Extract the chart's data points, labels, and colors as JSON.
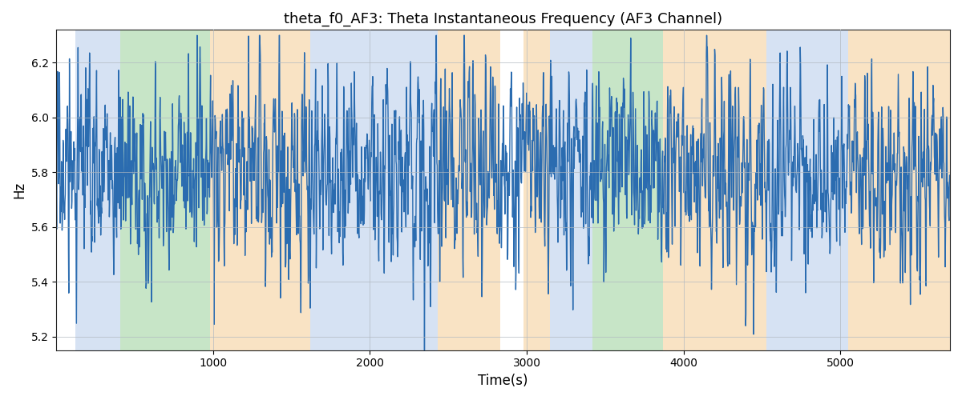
{
  "title": "theta_f0_AF3: Theta Instantaneous Frequency (AF3 Channel)",
  "xlabel": "Time(s)",
  "ylabel": "Hz",
  "line_color": "#2b6cb0",
  "line_width": 1.0,
  "grid_color": "#b0b8c0",
  "ylim": [
    5.15,
    6.32
  ],
  "xlim": [
    0,
    5700
  ],
  "figsize": [
    12.0,
    5.0
  ],
  "dpi": 100,
  "seed": 17,
  "n_points": 2800,
  "x_start": 0,
  "x_end": 5700,
  "bg_regions": [
    {
      "start": 120,
      "end": 410,
      "color": "#aec6e8",
      "alpha": 0.5
    },
    {
      "start": 410,
      "end": 980,
      "color": "#90cc90",
      "alpha": 0.5
    },
    {
      "start": 980,
      "end": 1620,
      "color": "#f5c98a",
      "alpha": 0.5
    },
    {
      "start": 1620,
      "end": 2430,
      "color": "#aec6e8",
      "alpha": 0.5
    },
    {
      "start": 2430,
      "end": 2830,
      "color": "#f5c98a",
      "alpha": 0.5
    },
    {
      "start": 2830,
      "end": 2980,
      "color": "white",
      "alpha": 1.0
    },
    {
      "start": 2980,
      "end": 3150,
      "color": "#f5c98a",
      "alpha": 0.5
    },
    {
      "start": 3150,
      "end": 3420,
      "color": "#aec6e8",
      "alpha": 0.5
    },
    {
      "start": 3420,
      "end": 3870,
      "color": "#90cc90",
      "alpha": 0.5
    },
    {
      "start": 3870,
      "end": 4530,
      "color": "#f5c98a",
      "alpha": 0.5
    },
    {
      "start": 4530,
      "end": 5050,
      "color": "#aec6e8",
      "alpha": 0.5
    },
    {
      "start": 5050,
      "end": 5700,
      "color": "#f5c98a",
      "alpha": 0.5
    }
  ],
  "base_freq": 5.8,
  "freq_std": 0.18,
  "smooth_sigma": 0.8,
  "title_fontsize": 13
}
